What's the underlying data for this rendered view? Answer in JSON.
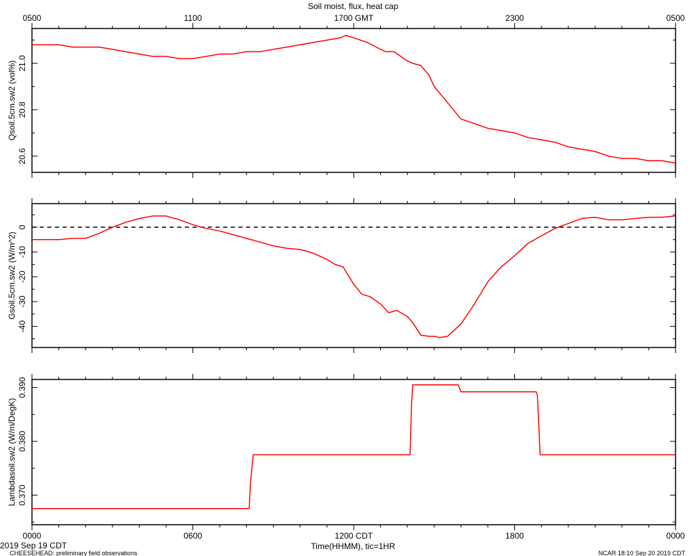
{
  "title": "Soil moist, flux, heat cap",
  "top_axis": {
    "ticks": [
      {
        "pos": 0,
        "label": "0500"
      },
      {
        "pos": 6,
        "label": "1100"
      },
      {
        "pos": 12,
        "label": "1700 GMT"
      },
      {
        "pos": 18,
        "label": "2300"
      },
      {
        "pos": 24,
        "label": "0500"
      }
    ]
  },
  "bottom_axis": {
    "ticks": [
      {
        "pos": 0,
        "label": "0000"
      },
      {
        "pos": 6,
        "label": "0600"
      },
      {
        "pos": 12,
        "label": "1200 CDT"
      },
      {
        "pos": 18,
        "label": "1800"
      },
      {
        "pos": 24,
        "label": "0000"
      }
    ],
    "xlabel": "Time(HHMM), tic=1HR"
  },
  "footer": {
    "date": "2019 Sep 19 CDT",
    "left": "CHEESEHEAD: preliminary field observations",
    "right": "NCAR 18:10 Sep 20 2019 CDT"
  },
  "colors": {
    "series": "#ff0000",
    "axis": "#000000",
    "zero_line": "#000000"
  },
  "chart_data": [
    {
      "type": "line",
      "ylabel": "Qsoil.5cm.sw2 (vol%)",
      "ylim": [
        20.53,
        21.15
      ],
      "yticks": [
        20.6,
        20.8,
        21.0
      ],
      "ytick_labels": [
        "20.6",
        "20.8",
        "21.0"
      ],
      "series": [
        {
          "x": [
            0,
            0.5,
            1,
            1.5,
            2,
            2.5,
            3,
            3.5,
            4,
            4.5,
            5,
            5.5,
            6,
            6.5,
            7,
            7.5,
            8,
            8.5,
            9,
            9.5,
            10,
            10.5,
            11,
            11.5,
            11.7,
            12,
            12.5,
            13,
            13.2,
            13.5,
            14,
            14.2,
            14.5,
            14.8,
            15,
            15.5,
            16,
            16.5,
            17,
            17.5,
            18,
            18.5,
            19,
            19.5,
            20,
            20.5,
            21,
            21.5,
            22,
            22.5,
            23,
            23.5,
            24
          ],
          "values": [
            21.08,
            21.08,
            21.08,
            21.07,
            21.07,
            21.07,
            21.06,
            21.05,
            21.04,
            21.03,
            21.03,
            21.02,
            21.02,
            21.03,
            21.04,
            21.04,
            21.05,
            21.05,
            21.06,
            21.07,
            21.08,
            21.09,
            21.1,
            21.11,
            21.12,
            21.11,
            21.09,
            21.06,
            21.05,
            21.05,
            21.01,
            21.0,
            20.99,
            20.95,
            20.9,
            20.83,
            20.76,
            20.74,
            20.72,
            20.71,
            20.7,
            20.68,
            20.67,
            20.66,
            20.64,
            20.63,
            20.62,
            20.6,
            20.59,
            20.59,
            20.58,
            20.58,
            20.57
          ]
        }
      ]
    },
    {
      "type": "line",
      "ylabel": "Gsoil.5cm.sw2 (W/m^2)",
      "ylim": [
        -48.5,
        9.5
      ],
      "yticks": [
        -40,
        -30,
        -20,
        -10,
        0
      ],
      "ytick_labels": [
        "-40",
        "-30",
        "-20",
        "-10",
        "0"
      ],
      "reference_line": 0,
      "series": [
        {
          "x": [
            0,
            0.5,
            1,
            1.5,
            2,
            2.5,
            3,
            3.5,
            4,
            4.5,
            5,
            5.5,
            6,
            6.5,
            7,
            7.5,
            8,
            8.5,
            9,
            9.5,
            10,
            10.5,
            11,
            11.3,
            11.6,
            12,
            12.3,
            12.6,
            13,
            13.3,
            13.6,
            14,
            14.2,
            14.5,
            14.8,
            15,
            15.2,
            15.5,
            16,
            16.5,
            17,
            17.5,
            18,
            18.5,
            19,
            19.5,
            20,
            20.5,
            21,
            21.5,
            22,
            22.5,
            23,
            23.5,
            24
          ],
          "values": [
            -5,
            -5,
            -5,
            -4.5,
            -4.5,
            -2.5,
            0,
            2,
            3.5,
            4.5,
            4.5,
            3,
            1,
            -0.5,
            -1.5,
            -3,
            -4.5,
            -6,
            -7.5,
            -8.5,
            -9,
            -10.5,
            -13,
            -15,
            -16,
            -23,
            -27,
            -28,
            -31,
            -34.5,
            -33.5,
            -36,
            -38.5,
            -43.5,
            -44,
            -44,
            -44.5,
            -44,
            -39,
            -31,
            -22,
            -16,
            -11.5,
            -6.5,
            -3.5,
            -0.5,
            1.5,
            3.5,
            4,
            3,
            3,
            3.5,
            4,
            4,
            4.5
          ]
        }
      ]
    },
    {
      "type": "line",
      "ylabel": "Lambdasoil.sw2 (W/m/DegK)",
      "ylim": [
        0.3645,
        0.3915
      ],
      "yticks": [
        0.37,
        0.38,
        0.39
      ],
      "ytick_labels": [
        "0.370",
        "0.380",
        "0.390"
      ],
      "series": [
        {
          "x": [
            0,
            8.1,
            8.15,
            8.25,
            8.3,
            14.1,
            14.15,
            14.2,
            15.9,
            16.0,
            16.1,
            18.8,
            18.85,
            18.95,
            24
          ],
          "values": [
            0.3675,
            0.3675,
            0.3725,
            0.3775,
            0.3775,
            0.3775,
            0.3865,
            0.3905,
            0.3905,
            0.3892,
            0.3892,
            0.3892,
            0.3885,
            0.3775,
            0.3775
          ]
        }
      ]
    }
  ]
}
